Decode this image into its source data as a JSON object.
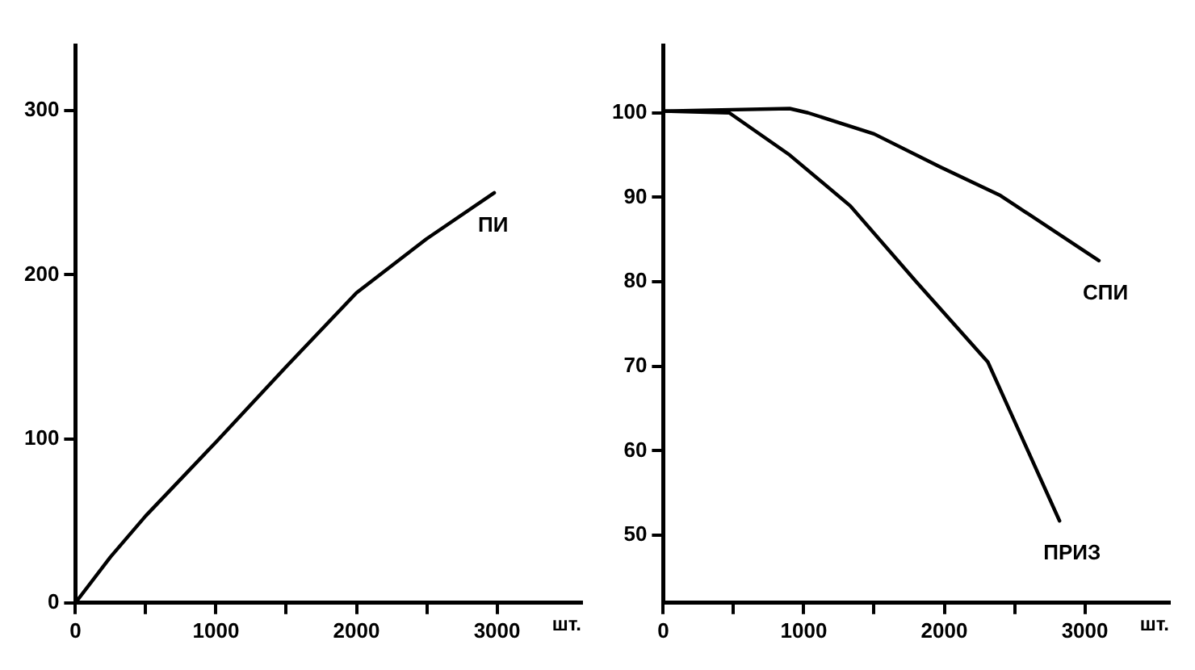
{
  "chart_data": [
    {
      "type": "line",
      "xlabel": "шт.",
      "xlim": [
        0,
        3600
      ],
      "ylim": [
        0,
        340
      ],
      "xticks": [
        0,
        {
          "value": 500,
          "label": null
        },
        1000,
        {
          "value": 1500,
          "label": null
        },
        2000,
        {
          "value": 2500,
          "label": null
        },
        3000
      ],
      "yticks": [
        0,
        100,
        200,
        300
      ],
      "grid": false,
      "legend": false,
      "marker": "none",
      "line_style": "solid",
      "series": [
        {
          "name": "ПИ",
          "color": "#000000",
          "x": [
            0,
            250,
            500,
            1000,
            1500,
            2000,
            2500,
            2980
          ],
          "values": [
            0,
            28,
            53,
            98,
            144,
            189,
            222,
            250
          ]
        }
      ]
    },
    {
      "type": "line",
      "xlabel": "шт.",
      "xlim": [
        0,
        3600
      ],
      "ylim": [
        42,
        108
      ],
      "xticks": [
        0,
        {
          "value": 500,
          "label": null
        },
        1000,
        {
          "value": 1500,
          "label": null
        },
        2000,
        {
          "value": 2500,
          "label": null
        },
        3000
      ],
      "yticks": [
        50,
        60,
        70,
        80,
        90,
        100
      ],
      "grid": false,
      "legend": false,
      "marker": "none",
      "line_style": "solid",
      "series": [
        {
          "name": "СПИ",
          "color": "#000000",
          "x": [
            0,
            900,
            1030,
            1500,
            1970,
            2400,
            3100
          ],
          "values": [
            100.2,
            100.5,
            100,
            97.5,
            93.6,
            90.2,
            82.5
          ]
        },
        {
          "name": "ПРИЗ",
          "color": "#000000",
          "x": [
            0,
            470,
            900,
            1330,
            1800,
            2310,
            2820
          ],
          "values": [
            100.2,
            100,
            95,
            89,
            80,
            70.5,
            51.7
          ]
        }
      ]
    }
  ]
}
